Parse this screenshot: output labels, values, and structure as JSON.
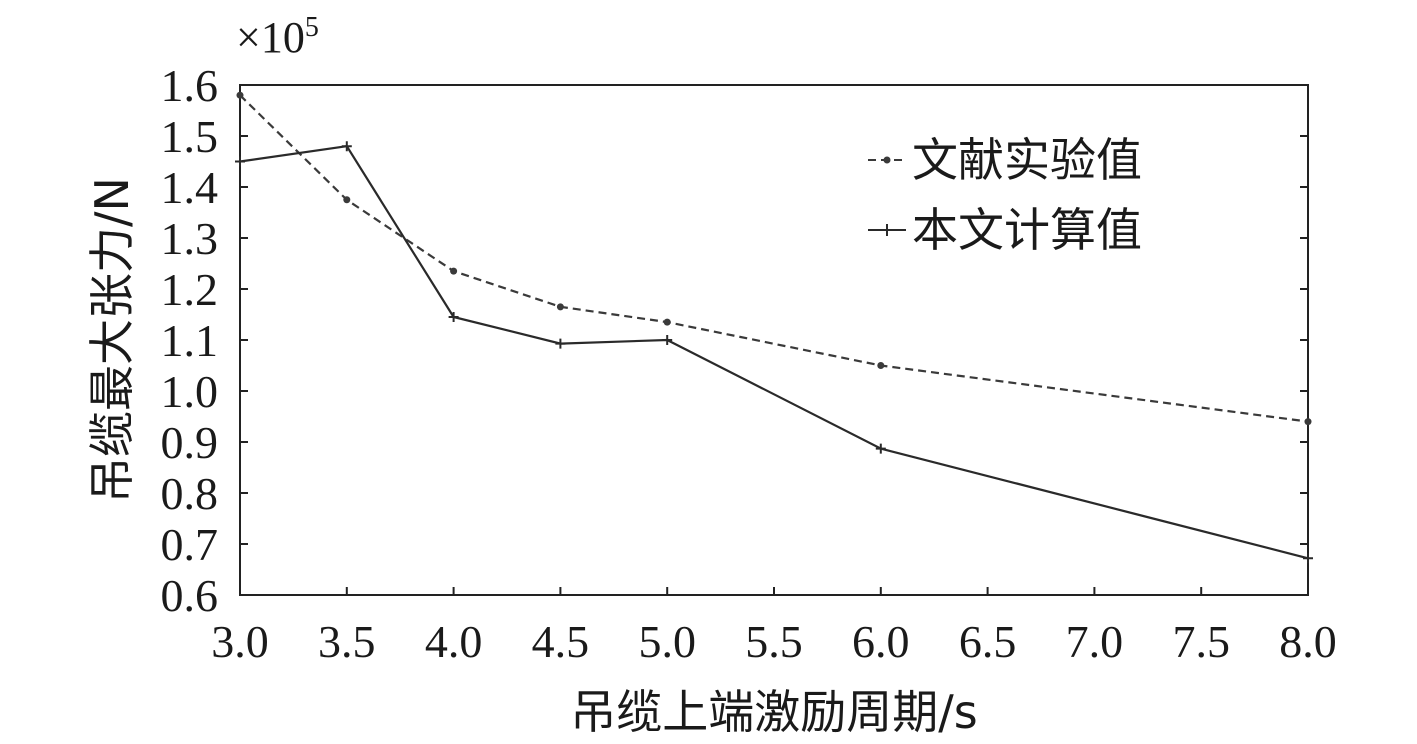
{
  "chart_data": {
    "type": "line",
    "xlabel": "吊缆上端激励周期/s",
    "ylabel": "吊缆最大张力/N",
    "y_multiplier": {
      "base": "×10",
      "exponent": "5"
    },
    "xlim": [
      3.0,
      8.0
    ],
    "ylim": [
      0.6,
      1.6
    ],
    "xticks": [
      "3.0",
      "3.5",
      "4.0",
      "4.5",
      "5.0",
      "5.5",
      "6.0",
      "6.5",
      "7.0",
      "7.5",
      "8.0"
    ],
    "yticks": [
      "0.6",
      "0.7",
      "0.8",
      "0.9",
      "1.0",
      "1.1",
      "1.2",
      "1.3",
      "1.4",
      "1.5",
      "1.6"
    ],
    "legend_position": "top-right",
    "series": [
      {
        "name": "文献实验值",
        "style": "dashed",
        "marker": "dot",
        "color": "#3a3a3a",
        "x": [
          3.0,
          3.5,
          4.0,
          4.5,
          5.0,
          6.0,
          8.0
        ],
        "y": [
          1.58,
          1.375,
          1.235,
          1.165,
          1.135,
          1.05,
          0.94
        ]
      },
      {
        "name": "本文计算值",
        "style": "solid",
        "marker": "plus",
        "color": "#2a2a2a",
        "x": [
          3.0,
          3.5,
          4.0,
          4.5,
          5.0,
          6.0,
          8.0
        ],
        "y": [
          1.45,
          1.48,
          1.145,
          1.093,
          1.1,
          0.887,
          0.672
        ]
      }
    ]
  }
}
